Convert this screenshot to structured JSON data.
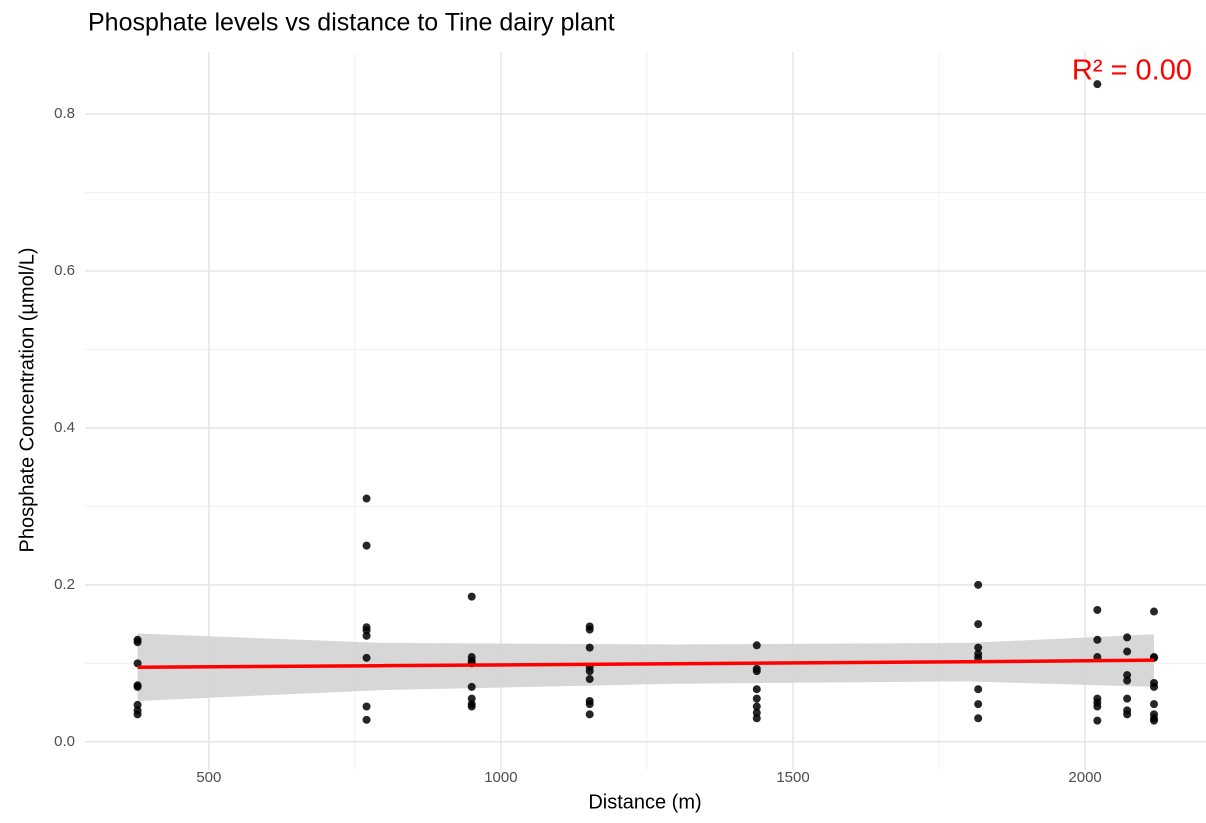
{
  "chart_data": {
    "type": "scatter",
    "title": "Phosphate levels vs distance to Tine dairy plant",
    "x_label": "Distance (m)",
    "y_label": "Phosphate Concentration (µmol/L)",
    "annotation": "R² = 0.00",
    "annotation_color": "#ff0000",
    "color": "#000000",
    "x": [
      378,
      378,
      378,
      378,
      378,
      378,
      378,
      378,
      770,
      770,
      770,
      770,
      770,
      770,
      770,
      770,
      950,
      950,
      950,
      950,
      950,
      950,
      950,
      950,
      1152,
      1152,
      1152,
      1152,
      1152,
      1152,
      1152,
      1152,
      1152,
      1438,
      1438,
      1438,
      1438,
      1438,
      1438,
      1438,
      1438,
      1817,
      1817,
      1817,
      1817,
      1817,
      1817,
      1817,
      1817,
      2021,
      2021,
      2021,
      2021,
      2021,
      2021,
      2021,
      2021,
      2072,
      2072,
      2072,
      2072,
      2072,
      2072,
      2072,
      2118,
      2118,
      2118,
      2118,
      2118,
      2118,
      2118,
      2118,
      2118
    ],
    "values": [
      0.13,
      0.127,
      0.1,
      0.072,
      0.07,
      0.047,
      0.04,
      0.035,
      0.31,
      0.25,
      0.146,
      0.142,
      0.135,
      0.107,
      0.045,
      0.028,
      0.185,
      0.108,
      0.103,
      0.1,
      0.07,
      0.055,
      0.048,
      0.045,
      0.147,
      0.143,
      0.12,
      0.095,
      0.09,
      0.08,
      0.052,
      0.048,
      0.035,
      0.123,
      0.093,
      0.09,
      0.067,
      0.055,
      0.045,
      0.037,
      0.03,
      0.2,
      0.15,
      0.12,
      0.112,
      0.107,
      0.067,
      0.048,
      0.03,
      0.838,
      0.168,
      0.13,
      0.108,
      0.055,
      0.05,
      0.045,
      0.027,
      0.133,
      0.115,
      0.085,
      0.078,
      0.055,
      0.04,
      0.035,
      0.166,
      0.108,
      0.107,
      0.075,
      0.07,
      0.048,
      0.035,
      0.03,
      0.027
    ],
    "fit": {
      "color": "#ff0000",
      "band_color": "#d3d3d3",
      "x": [
        378,
        800,
        1300,
        1800,
        2118
      ],
      "y": [
        0.095,
        0.097,
        0.0995,
        0.102,
        0.104
      ],
      "lower": [
        0.052,
        0.066,
        0.074,
        0.077,
        0.07
      ],
      "upper": [
        0.138,
        0.126,
        0.124,
        0.126,
        0.137
      ]
    },
    "xlim": [
      288,
      2207
    ],
    "ylim": [
      -0.013,
      0.879
    ],
    "xticks": [
      500,
      1000,
      1500,
      2000
    ],
    "yticks": [
      {
        "value": 0,
        "label": "0.0"
      },
      0.2,
      0.4,
      0.6,
      0.8
    ],
    "minor_xticks": [
      750,
      1250,
      1750
    ],
    "minor_yticks": [
      0.1,
      0.3,
      0.5,
      0.7
    ],
    "grid": true
  }
}
